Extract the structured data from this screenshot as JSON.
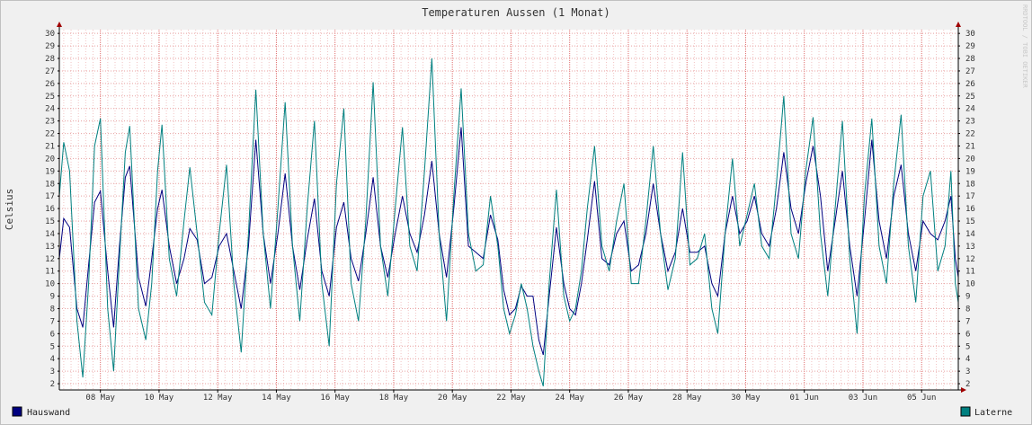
{
  "chart_data": {
    "type": "line",
    "title": "Temperaturen Aussen (1 Monat)",
    "ylabel": "Celsius",
    "xlabel": "",
    "watermark": "RRDTOOL / TOBI OETIKER",
    "ylim": [
      1.5,
      30.3
    ],
    "xlim": [
      6.6,
      37.25
    ],
    "y_ticks": [
      2,
      3,
      4,
      5,
      6,
      7,
      8,
      9,
      10,
      11,
      12,
      13,
      14,
      15,
      16,
      17,
      18,
      19,
      20,
      21,
      22,
      23,
      24,
      25,
      26,
      27,
      28,
      29,
      30
    ],
    "x_ticks": [
      {
        "x": 8,
        "label": "08 May"
      },
      {
        "x": 10,
        "label": "10 May"
      },
      {
        "x": 12,
        "label": "12 May"
      },
      {
        "x": 14,
        "label": "14 May"
      },
      {
        "x": 16,
        "label": "16 May"
      },
      {
        "x": 18,
        "label": "18 May"
      },
      {
        "x": 20,
        "label": "20 May"
      },
      {
        "x": 22,
        "label": "22 May"
      },
      {
        "x": 24,
        "label": "24 May"
      },
      {
        "x": 26,
        "label": "26 May"
      },
      {
        "x": 28,
        "label": "28 May"
      },
      {
        "x": 30,
        "label": "30 May"
      },
      {
        "x": 32,
        "label": "01 Jun"
      },
      {
        "x": 34,
        "label": "03 Jun"
      },
      {
        "x": 36,
        "label": "05 Jun"
      }
    ],
    "grid": true,
    "legend_position": "bottom",
    "series": [
      {
        "name": "Hauswand",
        "color": "#000080",
        "points": [
          [
            6.6,
            12.0
          ],
          [
            6.75,
            15.2
          ],
          [
            6.95,
            14.5
          ],
          [
            7.2,
            8.0
          ],
          [
            7.4,
            6.5
          ],
          [
            7.6,
            11.5
          ],
          [
            7.8,
            16.5
          ],
          [
            8.0,
            17.4
          ],
          [
            8.25,
            11.0
          ],
          [
            8.45,
            6.5
          ],
          [
            8.65,
            13.0
          ],
          [
            8.85,
            18.5
          ],
          [
            9.0,
            19.4
          ],
          [
            9.3,
            10.5
          ],
          [
            9.55,
            8.2
          ],
          [
            9.75,
            12.0
          ],
          [
            9.95,
            16.0
          ],
          [
            10.1,
            17.5
          ],
          [
            10.35,
            13.0
          ],
          [
            10.6,
            10.0
          ],
          [
            10.85,
            12.0
          ],
          [
            11.05,
            14.4
          ],
          [
            11.3,
            13.5
          ],
          [
            11.55,
            10.0
          ],
          [
            11.8,
            10.5
          ],
          [
            12.05,
            13.0
          ],
          [
            12.3,
            14.0
          ],
          [
            12.55,
            11.0
          ],
          [
            12.8,
            8.0
          ],
          [
            13.05,
            13.0
          ],
          [
            13.3,
            21.5
          ],
          [
            13.55,
            14.0
          ],
          [
            13.8,
            10.0
          ],
          [
            14.05,
            14.0
          ],
          [
            14.3,
            18.8
          ],
          [
            14.55,
            13.0
          ],
          [
            14.8,
            9.5
          ],
          [
            15.05,
            13.5
          ],
          [
            15.3,
            16.8
          ],
          [
            15.55,
            11.0
          ],
          [
            15.8,
            9.0
          ],
          [
            16.05,
            14.5
          ],
          [
            16.3,
            16.5
          ],
          [
            16.55,
            12.0
          ],
          [
            16.8,
            10.2
          ],
          [
            17.05,
            14.0
          ],
          [
            17.3,
            18.5
          ],
          [
            17.55,
            13.0
          ],
          [
            17.8,
            10.5
          ],
          [
            18.05,
            14.0
          ],
          [
            18.3,
            17.0
          ],
          [
            18.55,
            14.0
          ],
          [
            18.8,
            12.5
          ],
          [
            19.05,
            15.5
          ],
          [
            19.3,
            19.8
          ],
          [
            19.55,
            14.0
          ],
          [
            19.8,
            10.5
          ],
          [
            20.05,
            16.0
          ],
          [
            20.3,
            22.5
          ],
          [
            20.55,
            13.0
          ],
          [
            20.8,
            12.5
          ],
          [
            21.05,
            12.0
          ],
          [
            21.3,
            15.5
          ],
          [
            21.55,
            13.5
          ],
          [
            21.75,
            9.5
          ],
          [
            21.95,
            7.5
          ],
          [
            22.15,
            8.0
          ],
          [
            22.35,
            9.8
          ],
          [
            22.55,
            9.0
          ],
          [
            22.75,
            9.0
          ],
          [
            22.95,
            5.5
          ],
          [
            23.1,
            4.3
          ],
          [
            23.3,
            9.0
          ],
          [
            23.55,
            14.5
          ],
          [
            23.8,
            10.0
          ],
          [
            24.0,
            8.0
          ],
          [
            24.2,
            7.5
          ],
          [
            24.4,
            10.0
          ],
          [
            24.6,
            13.5
          ],
          [
            24.85,
            18.2
          ],
          [
            25.1,
            12.0
          ],
          [
            25.35,
            11.5
          ],
          [
            25.6,
            14.0
          ],
          [
            25.85,
            15.0
          ],
          [
            26.1,
            11.0
          ],
          [
            26.35,
            11.5
          ],
          [
            26.6,
            14.0
          ],
          [
            26.85,
            18.0
          ],
          [
            27.1,
            14.0
          ],
          [
            27.35,
            11.0
          ],
          [
            27.6,
            12.5
          ],
          [
            27.85,
            16.0
          ],
          [
            28.1,
            12.5
          ],
          [
            28.35,
            12.5
          ],
          [
            28.6,
            13.0
          ],
          [
            28.85,
            10.0
          ],
          [
            29.05,
            9.0
          ],
          [
            29.3,
            14.0
          ],
          [
            29.55,
            17.0
          ],
          [
            29.8,
            14.0
          ],
          [
            30.05,
            15.0
          ],
          [
            30.3,
            17.0
          ],
          [
            30.55,
            14.0
          ],
          [
            30.8,
            13.0
          ],
          [
            31.05,
            16.0
          ],
          [
            31.3,
            20.5
          ],
          [
            31.55,
            16.0
          ],
          [
            31.8,
            14.0
          ],
          [
            32.05,
            18.0
          ],
          [
            32.3,
            21.0
          ],
          [
            32.55,
            17.0
          ],
          [
            32.8,
            11.0
          ],
          [
            33.05,
            15.0
          ],
          [
            33.3,
            19.0
          ],
          [
            33.55,
            13.0
          ],
          [
            33.8,
            9.0
          ],
          [
            34.05,
            15.0
          ],
          [
            34.3,
            21.5
          ],
          [
            34.55,
            15.0
          ],
          [
            34.8,
            12.0
          ],
          [
            35.05,
            17.0
          ],
          [
            35.3,
            19.5
          ],
          [
            35.55,
            14.0
          ],
          [
            35.8,
            11.0
          ],
          [
            36.05,
            15.0
          ],
          [
            36.3,
            14.0
          ],
          [
            36.55,
            13.5
          ],
          [
            36.8,
            15.0
          ],
          [
            37.0,
            17.0
          ],
          [
            37.15,
            12.0
          ],
          [
            37.25,
            10.5
          ]
        ]
      },
      {
        "name": "Laterne",
        "color": "#008080",
        "points": [
          [
            6.6,
            17.0
          ],
          [
            6.75,
            21.3
          ],
          [
            6.95,
            19.0
          ],
          [
            7.2,
            7.0
          ],
          [
            7.4,
            2.5
          ],
          [
            7.6,
            10.0
          ],
          [
            7.8,
            21.0
          ],
          [
            8.0,
            23.2
          ],
          [
            8.25,
            8.0
          ],
          [
            8.45,
            3.0
          ],
          [
            8.65,
            12.0
          ],
          [
            8.85,
            20.5
          ],
          [
            9.0,
            22.6
          ],
          [
            9.3,
            8.0
          ],
          [
            9.55,
            5.5
          ],
          [
            9.75,
            10.0
          ],
          [
            9.95,
            19.0
          ],
          [
            10.1,
            22.7
          ],
          [
            10.35,
            12.0
          ],
          [
            10.6,
            9.0
          ],
          [
            10.85,
            15.0
          ],
          [
            11.05,
            19.3
          ],
          [
            11.3,
            14.0
          ],
          [
            11.55,
            8.5
          ],
          [
            11.8,
            7.5
          ],
          [
            12.05,
            14.0
          ],
          [
            12.3,
            19.5
          ],
          [
            12.55,
            10.0
          ],
          [
            12.8,
            4.5
          ],
          [
            13.05,
            14.0
          ],
          [
            13.3,
            25.5
          ],
          [
            13.55,
            14.0
          ],
          [
            13.8,
            8.0
          ],
          [
            14.05,
            16.0
          ],
          [
            14.3,
            24.5
          ],
          [
            14.55,
            13.0
          ],
          [
            14.8,
            7.0
          ],
          [
            15.05,
            16.0
          ],
          [
            15.3,
            23.0
          ],
          [
            15.55,
            10.0
          ],
          [
            15.8,
            5.0
          ],
          [
            16.05,
            18.0
          ],
          [
            16.3,
            24.0
          ],
          [
            16.55,
            10.0
          ],
          [
            16.8,
            7.0
          ],
          [
            17.05,
            15.0
          ],
          [
            17.3,
            26.1
          ],
          [
            17.55,
            13.0
          ],
          [
            17.8,
            9.0
          ],
          [
            18.05,
            16.0
          ],
          [
            18.3,
            22.5
          ],
          [
            18.55,
            13.0
          ],
          [
            18.8,
            11.0
          ],
          [
            19.05,
            19.0
          ],
          [
            19.3,
            28.0
          ],
          [
            19.55,
            14.0
          ],
          [
            19.8,
            7.0
          ],
          [
            20.05,
            17.0
          ],
          [
            20.3,
            25.6
          ],
          [
            20.55,
            14.0
          ],
          [
            20.8,
            11.0
          ],
          [
            21.05,
            11.5
          ],
          [
            21.3,
            17.0
          ],
          [
            21.55,
            13.0
          ],
          [
            21.75,
            8.0
          ],
          [
            21.95,
            6.0
          ],
          [
            22.15,
            7.5
          ],
          [
            22.35,
            10.0
          ],
          [
            22.55,
            8.0
          ],
          [
            22.75,
            5.0
          ],
          [
            22.95,
            3.0
          ],
          [
            23.1,
            1.8
          ],
          [
            23.3,
            10.0
          ],
          [
            23.55,
            17.5
          ],
          [
            23.8,
            9.0
          ],
          [
            24.0,
            7.0
          ],
          [
            24.2,
            8.0
          ],
          [
            24.4,
            11.0
          ],
          [
            24.6,
            16.0
          ],
          [
            24.85,
            21.0
          ],
          [
            25.1,
            13.0
          ],
          [
            25.35,
            11.0
          ],
          [
            25.6,
            15.0
          ],
          [
            25.85,
            18.0
          ],
          [
            26.1,
            10.0
          ],
          [
            26.35,
            10.0
          ],
          [
            26.6,
            15.0
          ],
          [
            26.85,
            21.0
          ],
          [
            27.1,
            14.0
          ],
          [
            27.35,
            9.5
          ],
          [
            27.6,
            12.0
          ],
          [
            27.85,
            20.5
          ],
          [
            28.1,
            11.5
          ],
          [
            28.35,
            12.0
          ],
          [
            28.6,
            14.0
          ],
          [
            28.85,
            8.0
          ],
          [
            29.05,
            6.0
          ],
          [
            29.3,
            14.0
          ],
          [
            29.55,
            20.0
          ],
          [
            29.8,
            13.0
          ],
          [
            30.05,
            15.5
          ],
          [
            30.3,
            18.0
          ],
          [
            30.55,
            13.0
          ],
          [
            30.8,
            12.0
          ],
          [
            31.05,
            18.0
          ],
          [
            31.3,
            25.0
          ],
          [
            31.55,
            14.0
          ],
          [
            31.8,
            12.0
          ],
          [
            32.05,
            19.0
          ],
          [
            32.3,
            23.3
          ],
          [
            32.55,
            14.0
          ],
          [
            32.8,
            9.0
          ],
          [
            33.05,
            16.0
          ],
          [
            33.3,
            23.0
          ],
          [
            33.55,
            12.0
          ],
          [
            33.8,
            6.0
          ],
          [
            34.05,
            17.0
          ],
          [
            34.3,
            23.2
          ],
          [
            34.55,
            13.0
          ],
          [
            34.8,
            10.0
          ],
          [
            35.05,
            18.0
          ],
          [
            35.3,
            23.5
          ],
          [
            35.55,
            13.0
          ],
          [
            35.8,
            8.5
          ],
          [
            36.05,
            17.0
          ],
          [
            36.3,
            19.0
          ],
          [
            36.55,
            11.0
          ],
          [
            36.8,
            13.0
          ],
          [
            37.0,
            19.0
          ],
          [
            37.15,
            10.0
          ],
          [
            37.25,
            8.5
          ]
        ]
      }
    ]
  }
}
